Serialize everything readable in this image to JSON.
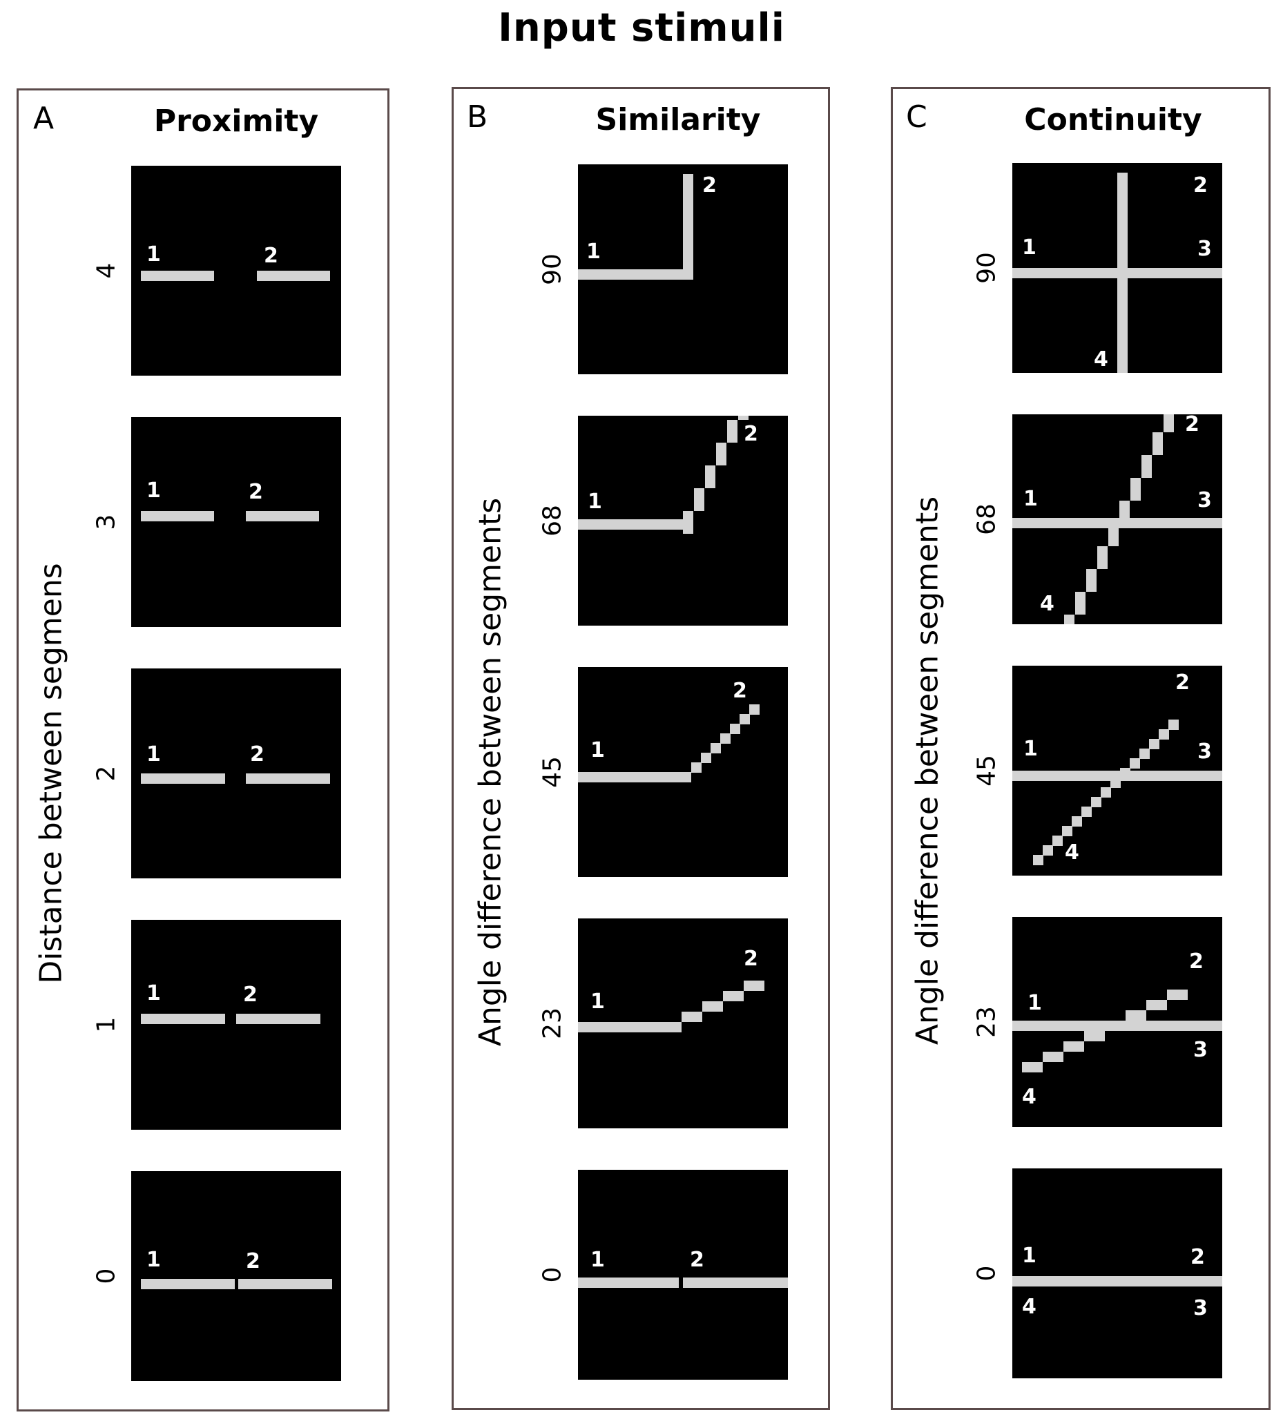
{
  "title": "Input stimuli",
  "colors": {
    "stimulus_bg": "#000000",
    "segment": "#d3d3d3",
    "label": "#ffffff",
    "frame": "#5a4a4a"
  },
  "panels": [
    {
      "letter": "A",
      "title": "Proximity",
      "axis_label": "Distance between segmens",
      "rows": [
        {
          "value": "4",
          "labels": [
            "1",
            "2"
          ]
        },
        {
          "value": "3",
          "labels": [
            "1",
            "2"
          ]
        },
        {
          "value": "2",
          "labels": [
            "1",
            "2"
          ]
        },
        {
          "value": "1",
          "labels": [
            "1",
            "2"
          ]
        },
        {
          "value": "0",
          "labels": [
            "1",
            "2"
          ]
        }
      ]
    },
    {
      "letter": "B",
      "title": "Similarity",
      "axis_label": "Angle difference between segments",
      "rows": [
        {
          "value": "90",
          "labels": [
            "1",
            "2"
          ]
        },
        {
          "value": "68",
          "labels": [
            "1",
            "2"
          ]
        },
        {
          "value": "45",
          "labels": [
            "1",
            "2"
          ]
        },
        {
          "value": "23",
          "labels": [
            "1",
            "2"
          ]
        },
        {
          "value": "0",
          "labels": [
            "1",
            "2"
          ]
        }
      ]
    },
    {
      "letter": "C",
      "title": "Continuity",
      "axis_label": "Angle difference between segments",
      "rows": [
        {
          "value": "90",
          "labels": [
            "1",
            "2",
            "3",
            "4"
          ]
        },
        {
          "value": "68",
          "labels": [
            "1",
            "2",
            "3",
            "4"
          ]
        },
        {
          "value": "45",
          "labels": [
            "1",
            "2",
            "3",
            "4"
          ]
        },
        {
          "value": "23",
          "labels": [
            "1",
            "2",
            "3",
            "4"
          ]
        },
        {
          "value": "0",
          "labels": [
            "1",
            "2",
            "3",
            "4"
          ]
        }
      ]
    }
  ]
}
